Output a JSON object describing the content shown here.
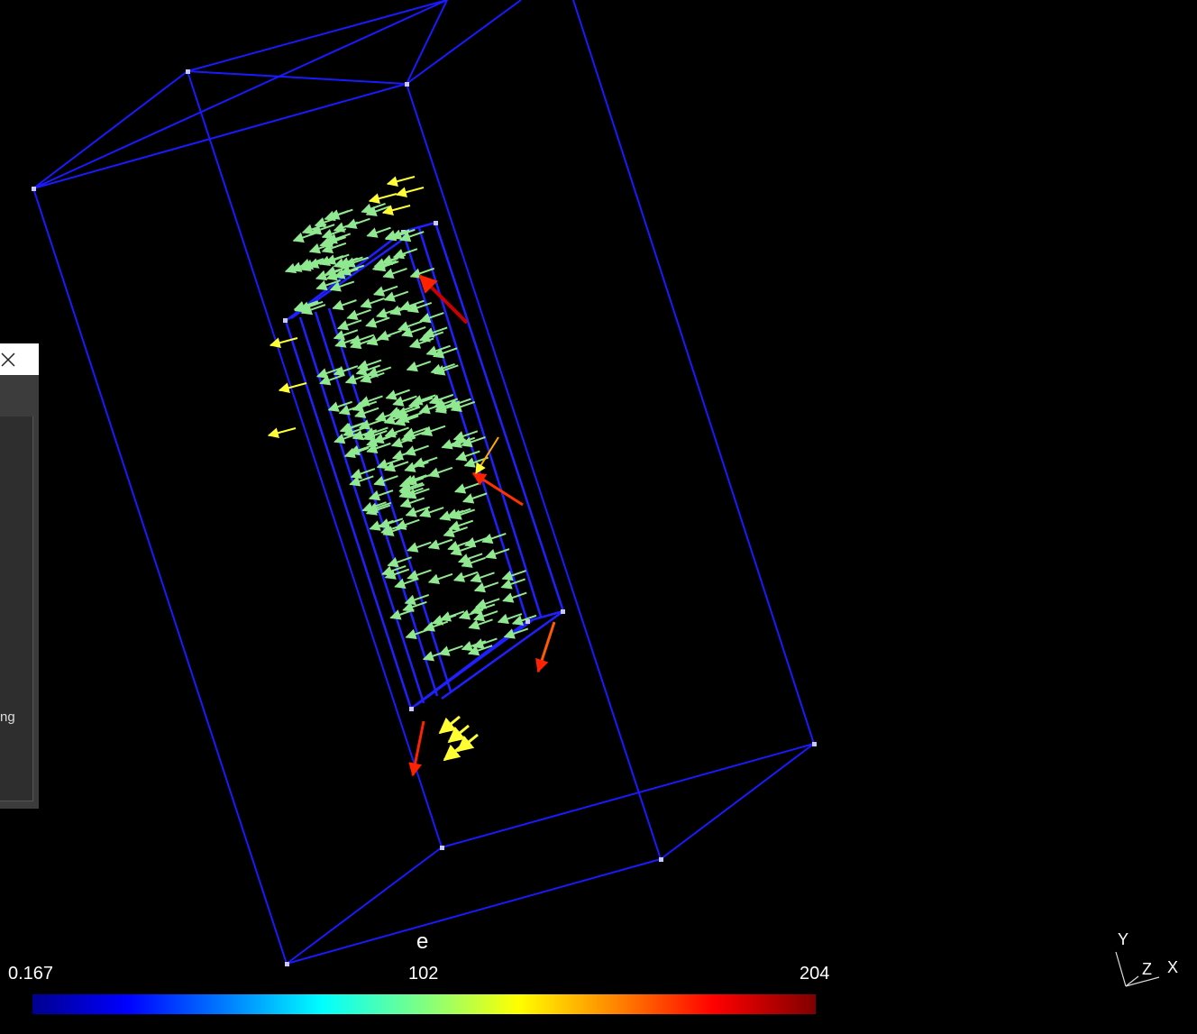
{
  "colorbar": {
    "title": "e",
    "min_label": "0.167",
    "mid_label": "102",
    "max_label": "204",
    "min": 0.167,
    "max": 204
  },
  "panel": {
    "partial_text": "ng"
  },
  "axes_triad": {
    "x": "X",
    "y": "Y",
    "z": "Z"
  },
  "colors": {
    "background": "#000000",
    "box_wire": "#1a1aff",
    "arrow_low": "#90e890",
    "arrow_mid": "#ffff33",
    "arrow_high": "#ff2200"
  },
  "icons": {
    "close": "close-icon"
  }
}
